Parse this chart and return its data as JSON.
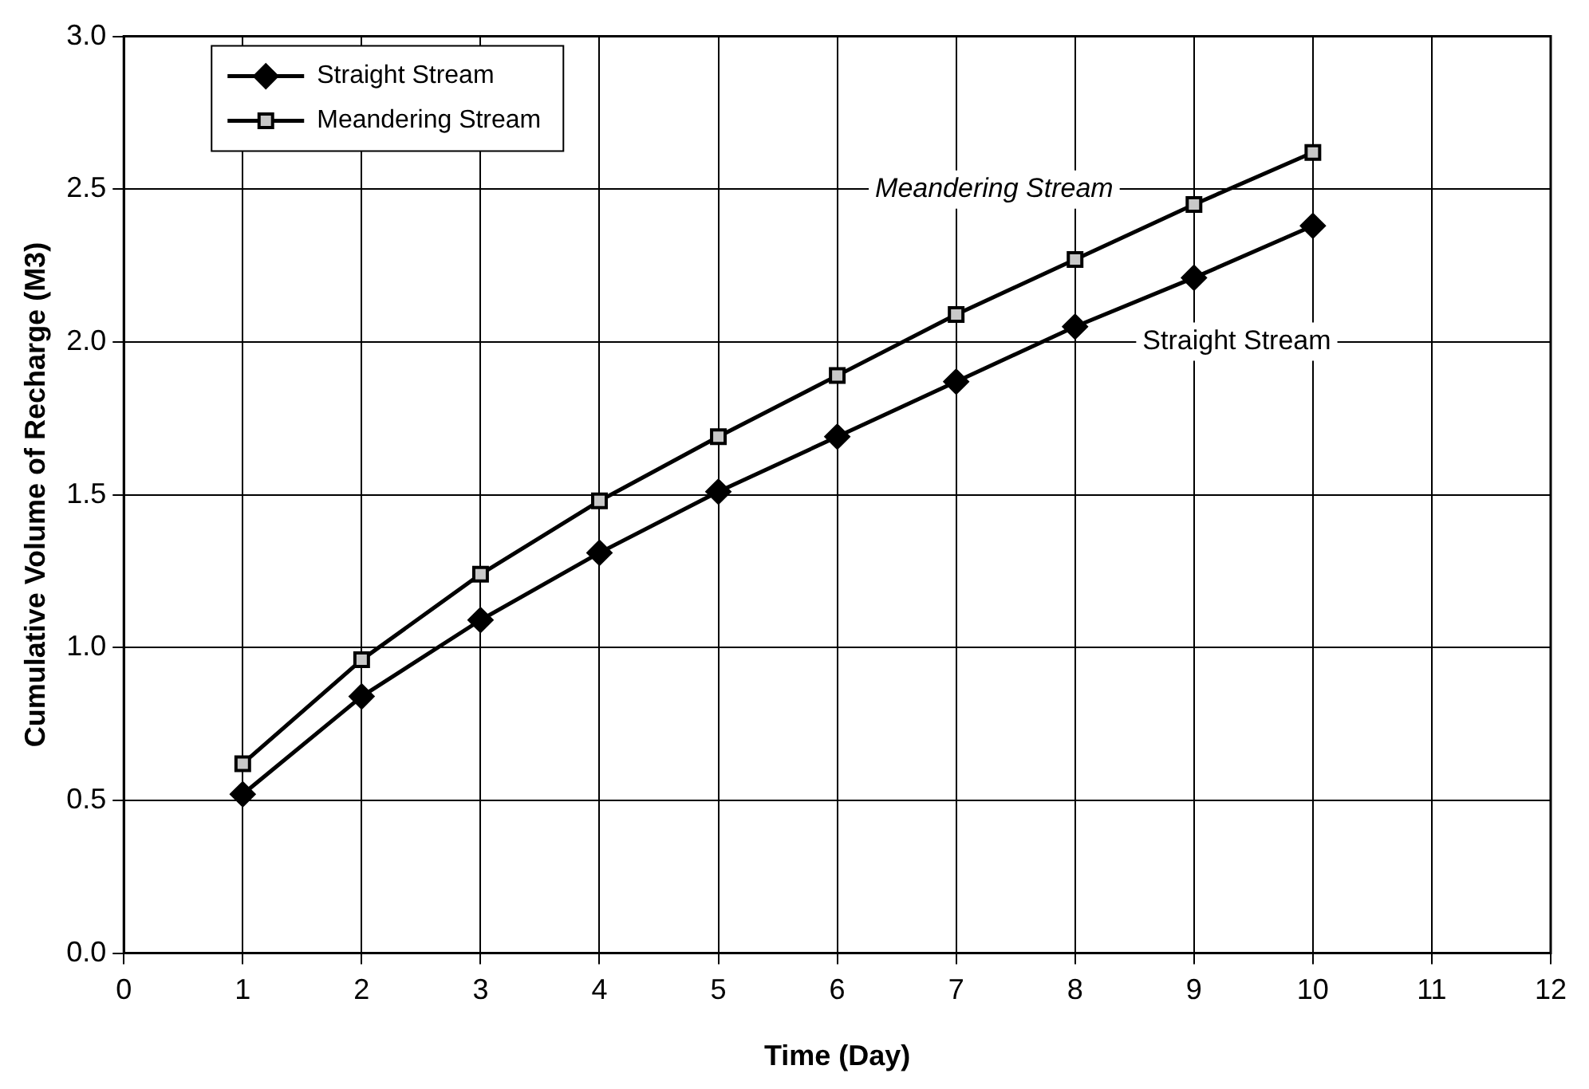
{
  "chart_data": {
    "type": "line",
    "xlabel": "Time (Day)",
    "ylabel": "Cumulative Volume of Recharge (M3)",
    "x": [
      1,
      2,
      3,
      4,
      5,
      6,
      7,
      8,
      9,
      10
    ],
    "series": [
      {
        "name": "Straight Stream",
        "color": "#000000",
        "marker": "diamond",
        "values": [
          0.52,
          0.84,
          1.09,
          1.31,
          1.51,
          1.69,
          1.87,
          2.05,
          2.21,
          2.38
        ]
      },
      {
        "name": "Meandering Stream",
        "color": "#000000",
        "marker": "square",
        "values": [
          0.62,
          0.96,
          1.24,
          1.48,
          1.69,
          1.89,
          2.09,
          2.27,
          2.45,
          2.62
        ]
      }
    ],
    "xlim": [
      0,
      12
    ],
    "xticks": [
      0,
      1,
      2,
      3,
      4,
      5,
      6,
      7,
      8,
      9,
      10,
      11,
      12
    ],
    "ylim": [
      0,
      3
    ],
    "yticks": [
      {
        "value": 0,
        "label": "0.0"
      },
      {
        "value": 0.5,
        "label": "0.5"
      },
      {
        "value": 1,
        "label": "1.0"
      },
      {
        "value": 1.5,
        "label": "1.5"
      },
      {
        "value": 2,
        "label": "2.0"
      },
      {
        "value": 2.5,
        "label": "2.5"
      },
      {
        "value": 3,
        "label": "3.0"
      }
    ],
    "annotations": [
      "Meandering Stream",
      "Straight Stream"
    ],
    "grid": true,
    "legend": "top left",
    "line_style": "solid"
  }
}
